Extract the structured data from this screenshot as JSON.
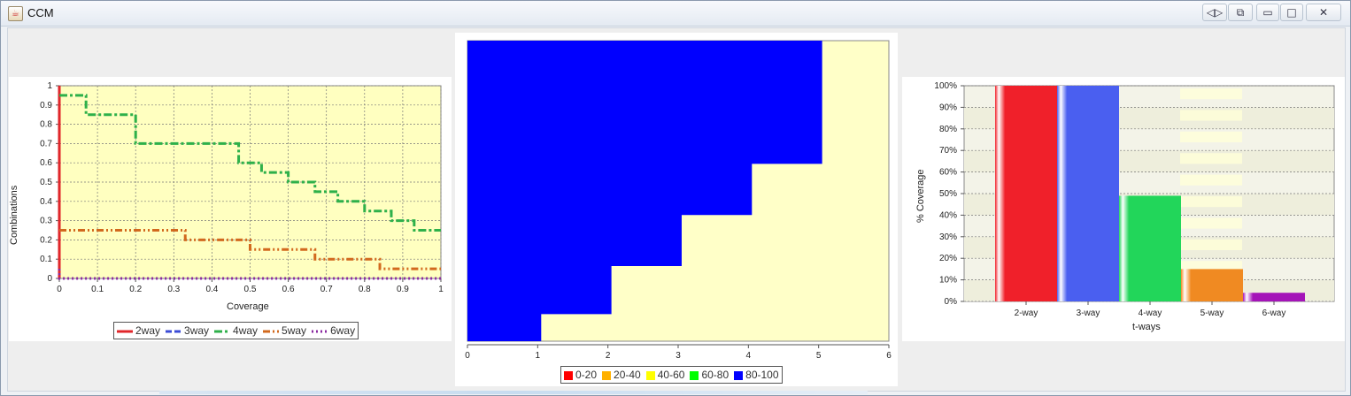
{
  "window": {
    "title": "CCM",
    "icon": "java-coffee-icon",
    "controls": [
      "restore-split-icon",
      "pin-icon",
      "minimize-icon",
      "maximize-icon",
      "close-icon"
    ]
  },
  "chart_data": [
    {
      "type": "line",
      "xlabel": "Coverage",
      "ylabel": "Combinations",
      "xlim": [
        0,
        1
      ],
      "ylim": [
        0,
        1
      ],
      "xticks": [
        "0",
        "0.1",
        "0.2",
        "0.3",
        "0.4",
        "0.5",
        "0.6",
        "0.7",
        "0.8",
        "0.9",
        "1"
      ],
      "yticks": [
        "0",
        "0.1",
        "0.2",
        "0.3",
        "0.4",
        "0.5",
        "0.6",
        "0.7",
        "0.8",
        "0.9",
        "1"
      ],
      "grid": true,
      "legend_position": "bottom",
      "series": [
        {
          "name": "2way",
          "color": "#e0262a",
          "x": [
            0,
            0
          ],
          "y": [
            0,
            1
          ]
        },
        {
          "name": "3way",
          "color": "#3b4bd6",
          "x": [
            0,
            0
          ],
          "y": [
            0,
            0
          ]
        },
        {
          "name": "4way",
          "color": "#2eb04a",
          "x": [
            0,
            0.07,
            0.07,
            0.2,
            0.2,
            0.47,
            0.47,
            0.53,
            0.53,
            0.6,
            0.6,
            0.67,
            0.67,
            0.73,
            0.73,
            0.8,
            0.8,
            0.87,
            0.87,
            0.93,
            0.93,
            1
          ],
          "y": [
            0.95,
            0.95,
            0.85,
            0.85,
            0.7,
            0.7,
            0.6,
            0.6,
            0.55,
            0.55,
            0.5,
            0.5,
            0.45,
            0.45,
            0.4,
            0.4,
            0.35,
            0.35,
            0.3,
            0.3,
            0.25,
            0.25
          ]
        },
        {
          "name": "5way",
          "color": "#d2691e",
          "x": [
            0,
            0.33,
            0.33,
            0.5,
            0.5,
            0.67,
            0.67,
            0.84,
            0.84,
            1
          ],
          "y": [
            0.25,
            0.25,
            0.2,
            0.2,
            0.15,
            0.15,
            0.1,
            0.1,
            0.05,
            0.05
          ]
        },
        {
          "name": "6way",
          "color": "#8a2aa0",
          "x": [
            0,
            0,
            1
          ],
          "y": [
            0.05,
            0,
            0
          ]
        }
      ]
    },
    {
      "type": "area",
      "xlim": [
        0,
        6
      ],
      "xticks": [
        "0",
        "1",
        "2",
        "3",
        "4",
        "5",
        "6"
      ],
      "legend_position": "bottom",
      "legend": [
        {
          "name": "0-20",
          "color": "#ff0000"
        },
        {
          "name": "20-40",
          "color": "#ffb000"
        },
        {
          "name": "40-60",
          "color": "#ffff00"
        },
        {
          "name": "60-80",
          "color": "#00ff00"
        },
        {
          "name": "80-100",
          "color": "#0000ff"
        }
      ],
      "series": [
        {
          "name": "80-100",
          "color": "#0000ff",
          "x": [
            0,
            1.05,
            1.05,
            2.05,
            2.05,
            3.05,
            3.05,
            4.05,
            4.05,
            5.05,
            5.05
          ],
          "y": [
            1,
            1,
            1,
            1,
            1,
            1,
            1,
            1,
            1,
            1,
            1
          ],
          "step_boundary": [
            [
              1.05,
              0
            ],
            [
              1.05,
              0.09
            ],
            [
              2.05,
              0.09
            ],
            [
              2.05,
              0.25
            ],
            [
              3.05,
              0.25
            ],
            [
              3.05,
              0.42
            ],
            [
              4.05,
              0.42
            ],
            [
              4.05,
              0.59
            ],
            [
              5.05,
              0.59
            ],
            [
              5.05,
              1
            ]
          ]
        }
      ],
      "background": "#ffffc8"
    },
    {
      "type": "bar",
      "xlabel": "t-ways",
      "ylabel": "% Coverage",
      "categories": [
        "2-way",
        "3-way",
        "4-way",
        "5-way",
        "6-way"
      ],
      "values": [
        100,
        100,
        49,
        15,
        4
      ],
      "colors": [
        "#f0202a",
        "#4a5ff0",
        "#22d65a",
        "#f08a22",
        "#a414b8"
      ],
      "yticks": [
        "0%",
        "10%",
        "20%",
        "30%",
        "40%",
        "50%",
        "60%",
        "70%",
        "80%",
        "90%",
        "100%"
      ],
      "ylim": [
        0,
        100
      ],
      "grid": true
    }
  ]
}
